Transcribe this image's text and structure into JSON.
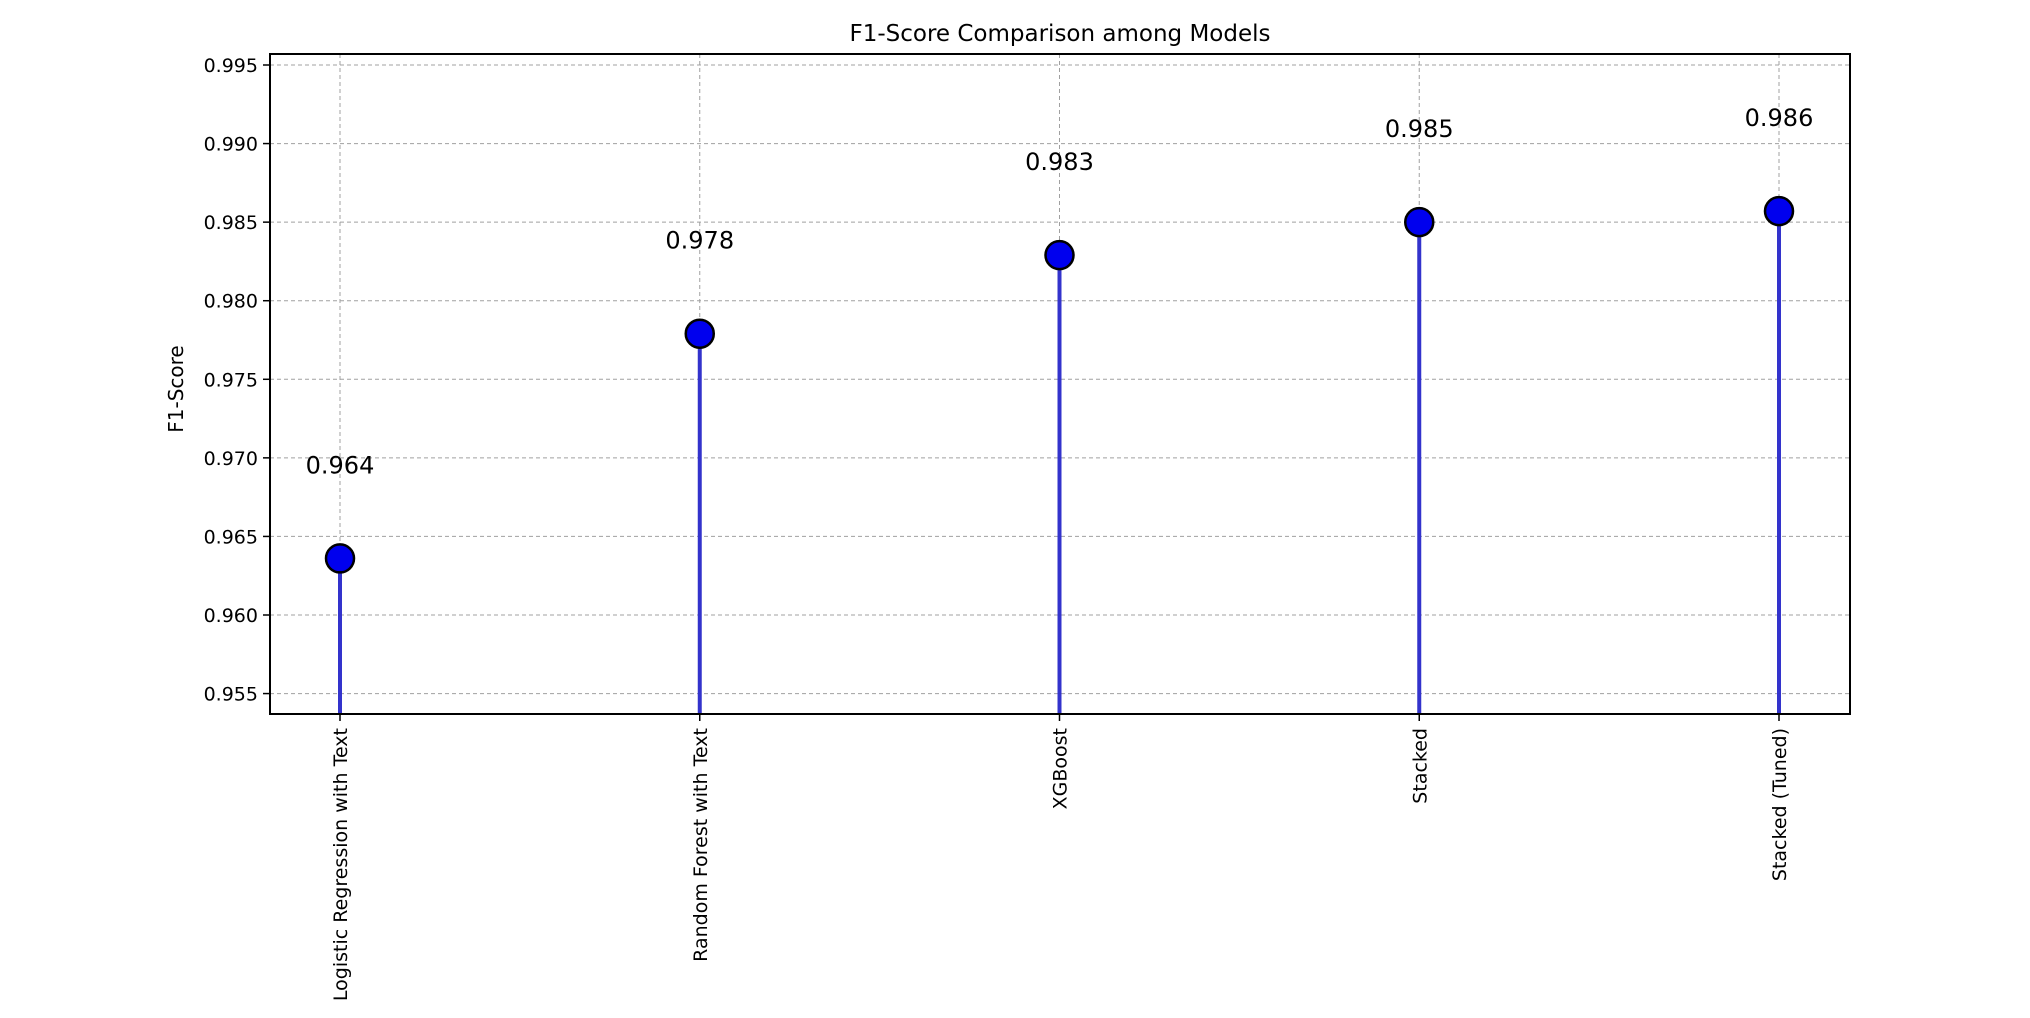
{
  "chart_data": {
    "type": "lollipop",
    "title": "F1-Score Comparison among Models",
    "xlabel": "",
    "ylabel": "F1-Score",
    "categories": [
      "Logistic Regression with Text",
      "Random Forest with Text",
      "XGBoost",
      "Stacked",
      "Stacked (Tuned)"
    ],
    "values": [
      0.9636,
      0.9779,
      0.9829,
      0.985,
      0.9857
    ],
    "value_labels": [
      "0.964",
      "0.978",
      "0.983",
      "0.985",
      "0.986"
    ],
    "ylim": [
      0.9537,
      0.9957
    ],
    "yticks": [
      0.955,
      0.96,
      0.965,
      0.97,
      0.975,
      0.98,
      0.985,
      0.99,
      0.995
    ],
    "ytick_labels": [
      "0.955",
      "0.960",
      "0.965",
      "0.970",
      "0.975",
      "0.980",
      "0.985",
      "0.990",
      "0.995"
    ],
    "grid": true,
    "colors": {
      "stem": "#3333cc",
      "marker_fill": "#0000ee",
      "marker_edge": "#000000"
    }
  }
}
